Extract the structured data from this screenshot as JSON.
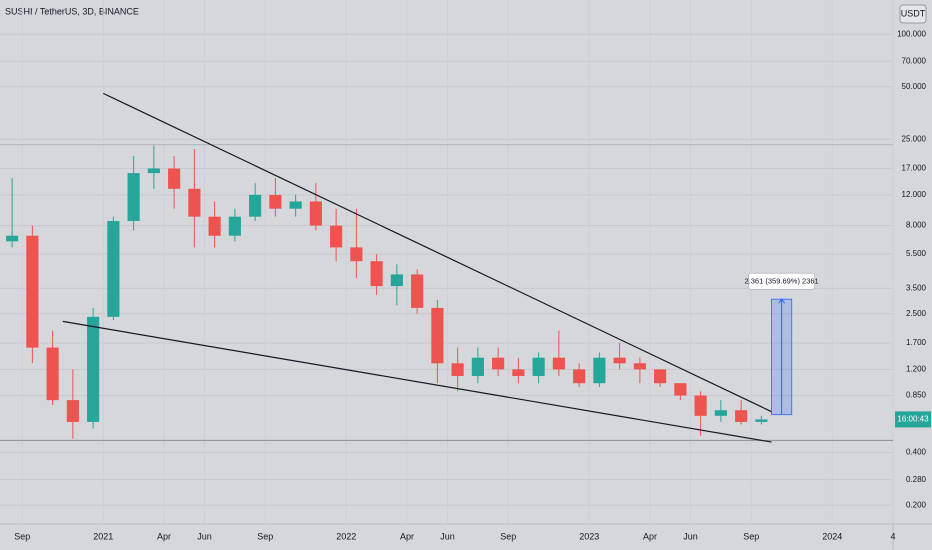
{
  "header": {
    "symbol": "SUSHI / TetherUS, 3D, BINANCE",
    "currency": "USDT"
  },
  "chart_data": {
    "type": "candlestick",
    "x": [
      "2020-08",
      "2020-09",
      "2020-10",
      "2020-11",
      "2020-12",
      "2021-01",
      "2021-02",
      "2021-03",
      "2021-04",
      "2021-05",
      "2021-06",
      "2021-07",
      "2021-08",
      "2021-09",
      "2021-10",
      "2021-11",
      "2021-12",
      "2022-01",
      "2022-02",
      "2022-03",
      "2022-04",
      "2022-05",
      "2022-06",
      "2022-07",
      "2022-08",
      "2022-09",
      "2022-10",
      "2022-11",
      "2022-12",
      "2023-01",
      "2023-02",
      "2023-03",
      "2023-04",
      "2023-05",
      "2023-06",
      "2023-07",
      "2023-08",
      "2023-09"
    ],
    "open": [
      6.5,
      7,
      1.6,
      0.8,
      0.6,
      2.4,
      8.5,
      16,
      17,
      13,
      9,
      7,
      9,
      12,
      10,
      11,
      8,
      6,
      5,
      3.6,
      4.2,
      2.7,
      1.3,
      1.1,
      1.4,
      1.2,
      1.1,
      1.4,
      1.2,
      1.0,
      1.4,
      1.3,
      1.2,
      1.0,
      0.85,
      0.65,
      0.7,
      0.6
    ],
    "high": [
      15,
      8,
      2,
      1.2,
      2.7,
      9,
      20,
      23,
      20,
      22,
      11,
      10,
      14,
      15,
      12,
      14,
      10,
      10,
      5.5,
      4.8,
      4.5,
      3,
      1.6,
      1.6,
      1.6,
      1.4,
      1.5,
      2.0,
      1.3,
      1.5,
      1.7,
      1.4,
      1.2,
      1.0,
      0.9,
      0.8,
      0.8,
      0.65
    ],
    "low": [
      6,
      1.3,
      0.75,
      0.48,
      0.55,
      2.3,
      7.5,
      13,
      10,
      6,
      6,
      6.5,
      8.5,
      9,
      9,
      7.5,
      5,
      4,
      3.2,
      2.8,
      2.5,
      1.0,
      0.9,
      1.0,
      1.1,
      1.0,
      1.0,
      1.1,
      0.95,
      0.95,
      1.2,
      1.0,
      0.95,
      0.8,
      0.5,
      0.6,
      0.58,
      0.58
    ],
    "close": [
      7,
      1.6,
      0.8,
      0.6,
      2.4,
      8.5,
      16,
      17,
      13,
      9,
      7,
      9,
      12,
      10,
      11,
      8,
      6,
      5,
      3.6,
      4.2,
      2.7,
      1.3,
      1.1,
      1.4,
      1.2,
      1.1,
      1.4,
      1.2,
      1.0,
      1.4,
      1.3,
      1.2,
      1.0,
      0.85,
      0.65,
      0.7,
      0.6,
      0.62
    ],
    "up_color": "#26a69a",
    "down_color": "#ef5350",
    "log_scale": true,
    "grid": true,
    "ylim": [
      0.156,
      157
    ],
    "yticks": [
      {
        "value": 100,
        "label": "100.000"
      },
      {
        "value": 70,
        "label": "70.000"
      },
      {
        "value": 50,
        "label": "50.000"
      },
      {
        "value": 25,
        "label": "25.000"
      },
      {
        "value": 17,
        "label": "17.000"
      },
      {
        "value": 12,
        "label": "12.000"
      },
      {
        "value": 8,
        "label": "8.000"
      },
      {
        "value": 5.5,
        "label": "5.500"
      },
      {
        "value": 3.5,
        "label": "3.500"
      },
      {
        "value": 2.5,
        "label": "2.500"
      },
      {
        "value": 1.7,
        "label": "1.700"
      },
      {
        "value": 1.2,
        "label": "1.200"
      },
      {
        "value": 0.85,
        "label": "0.850"
      },
      {
        "value": 0.4,
        "label": "0.400"
      },
      {
        "value": 0.28,
        "label": "0.280"
      },
      {
        "value": 0.2,
        "label": "0.200"
      }
    ],
    "xlim": [
      "2020-08",
      "2024-04"
    ],
    "xticks": [
      {
        "value": "2020-09",
        "label": "Sep"
      },
      {
        "value": "2021-01",
        "label": "2021"
      },
      {
        "value": "2021-04",
        "label": "Apr"
      },
      {
        "value": "2021-06",
        "label": "Jun"
      },
      {
        "value": "2021-09",
        "label": "Sep"
      },
      {
        "value": "2022-01",
        "label": "2022"
      },
      {
        "value": "2022-04",
        "label": "Apr"
      },
      {
        "value": "2022-06",
        "label": "Jun"
      },
      {
        "value": "2022-09",
        "label": "Sep"
      },
      {
        "value": "2023-01",
        "label": "2023"
      },
      {
        "value": "2023-04",
        "label": "Apr"
      },
      {
        "value": "2023-06",
        "label": "Jun"
      },
      {
        "value": "2023-09",
        "label": "Sep"
      },
      {
        "value": "2024-01",
        "label": "2024"
      },
      {
        "value": "2024-04",
        "label": "4"
      }
    ],
    "trendlines": [
      {
        "x": [
          "2021-01",
          "2023-10"
        ],
        "y": [
          45.8,
          0.687
        ]
      },
      {
        "x": [
          "2020-11",
          "2023-10"
        ],
        "y": [
          2.26,
          0.46
        ]
      }
    ],
    "levels": [
      23.3,
      0.47
    ],
    "measure": {
      "x": [
        "2023-10",
        "2023-11"
      ],
      "low": 0.66,
      "high": 3.03,
      "label": "2.361 (359.69%) 2361"
    },
    "last_label": "16:00:43"
  }
}
